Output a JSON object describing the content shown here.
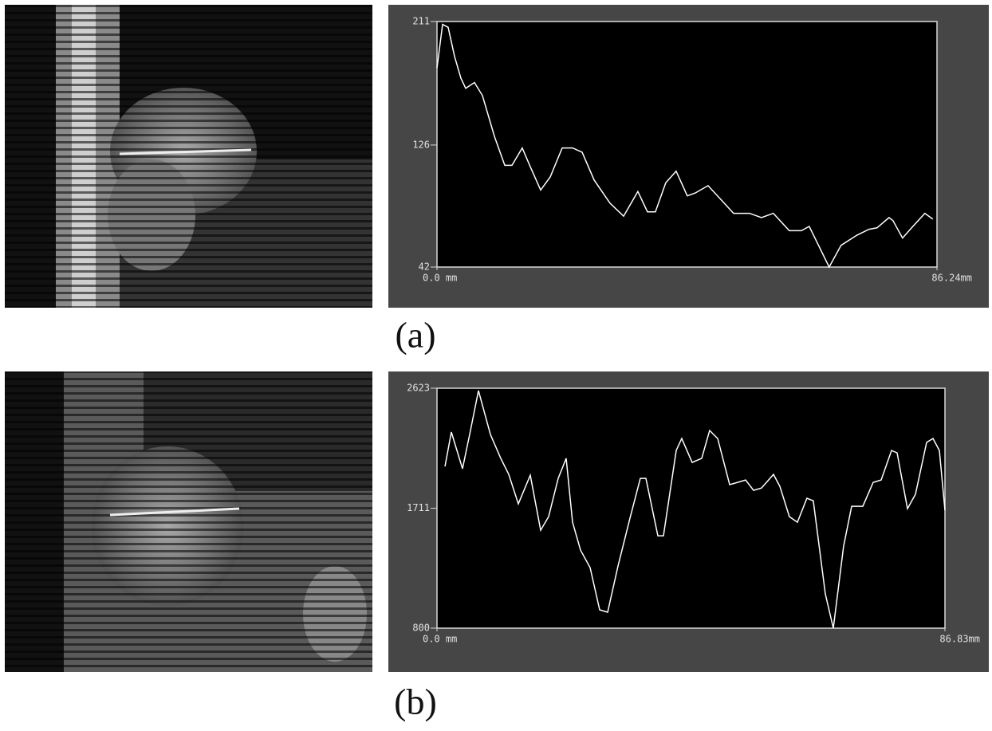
{
  "captions": [
    "(a)",
    "(b)"
  ],
  "chart_data": [
    {
      "type": "line",
      "color": "#ffffff",
      "x": [
        0,
        0.96,
        1.93,
        3.03,
        4.13,
        4.95,
        6.46,
        7.84,
        9.9,
        11.69,
        12.93,
        14.71,
        16.09,
        17.88,
        19.53,
        21.59,
        23.38,
        25.03,
        27.09,
        29.84,
        32.18,
        34.65,
        36.3,
        37.68,
        39.46,
        41.25,
        43.18,
        44.55,
        46.75,
        49.09,
        51.15,
        53.9,
        55.96,
        58.02,
        60.77,
        62.84,
        64.21,
        67.65,
        69.71,
        72.46,
        74.53,
        75.9,
        77.96,
        78.65,
        80.3,
        82.09,
        84.15,
        85.53
      ],
      "values": [
        179,
        209,
        207,
        187,
        172,
        165,
        169,
        160,
        132,
        112,
        112,
        124,
        111,
        95,
        104,
        124,
        124,
        121,
        102,
        86,
        77,
        94,
        80,
        80,
        100,
        108,
        91,
        93,
        98,
        88,
        79,
        79,
        76,
        79,
        67,
        67,
        70,
        42,
        57,
        64,
        68,
        69,
        76,
        74,
        62,
        70,
        79,
        75
      ],
      "xlim": [
        0,
        86.24
      ],
      "xticks": [
        {
          "value": 0,
          "label": "0.0 mm"
        },
        {
          "value": 86.24,
          "label": "86.24mm"
        }
      ],
      "ylim": [
        42,
        211
      ],
      "yticks": [
        42,
        126,
        211
      ]
    },
    {
      "type": "line",
      "color": "#ffffff",
      "x": [
        1.36,
        2.45,
        4.36,
        5.72,
        7.09,
        9.13,
        10.9,
        12.27,
        13.9,
        15.95,
        17.72,
        19.08,
        20.72,
        22.08,
        23.17,
        24.54,
        26.17,
        27.81,
        29.17,
        30.94,
        32.99,
        34.76,
        35.71,
        37.76,
        38.71,
        40.89,
        41.84,
        43.62,
        45.25,
        46.61,
        47.98,
        50.02,
        51.39,
        52.75,
        54.11,
        55.47,
        57.52,
        58.61,
        60.24,
        61.61,
        63.24,
        64.33,
        66.38,
        67.74,
        69.51,
        70.88,
        72.79,
        74.56,
        75.93,
        77.7,
        78.65,
        80.43,
        81.79,
        83.7,
        84.79,
        85.88,
        86.83
      ],
      "values": [
        2029,
        2290,
        2011,
        2302,
        2605,
        2272,
        2090,
        1968,
        1744,
        1962,
        1544,
        1647,
        1938,
        2090,
        1605,
        1393,
        1260,
        939,
        921,
        1272,
        1635,
        1938,
        1938,
        1502,
        1502,
        2150,
        2241,
        2059,
        2090,
        2302,
        2241,
        1890,
        1908,
        1926,
        1847,
        1865,
        1968,
        1877,
        1647,
        1605,
        1787,
        1768,
        1060,
        800,
        1423,
        1726,
        1726,
        1908,
        1926,
        2150,
        2132,
        1708,
        1817,
        2211,
        2241,
        2150,
        1696
      ],
      "xlim": [
        0,
        86.83
      ],
      "xticks": [
        {
          "value": 0,
          "label": "0.0 mm"
        },
        {
          "value": 86.83,
          "label": "86.83mm"
        }
      ],
      "ylim": [
        800,
        2623
      ],
      "yticks": [
        800,
        1711,
        2623
      ]
    }
  ]
}
